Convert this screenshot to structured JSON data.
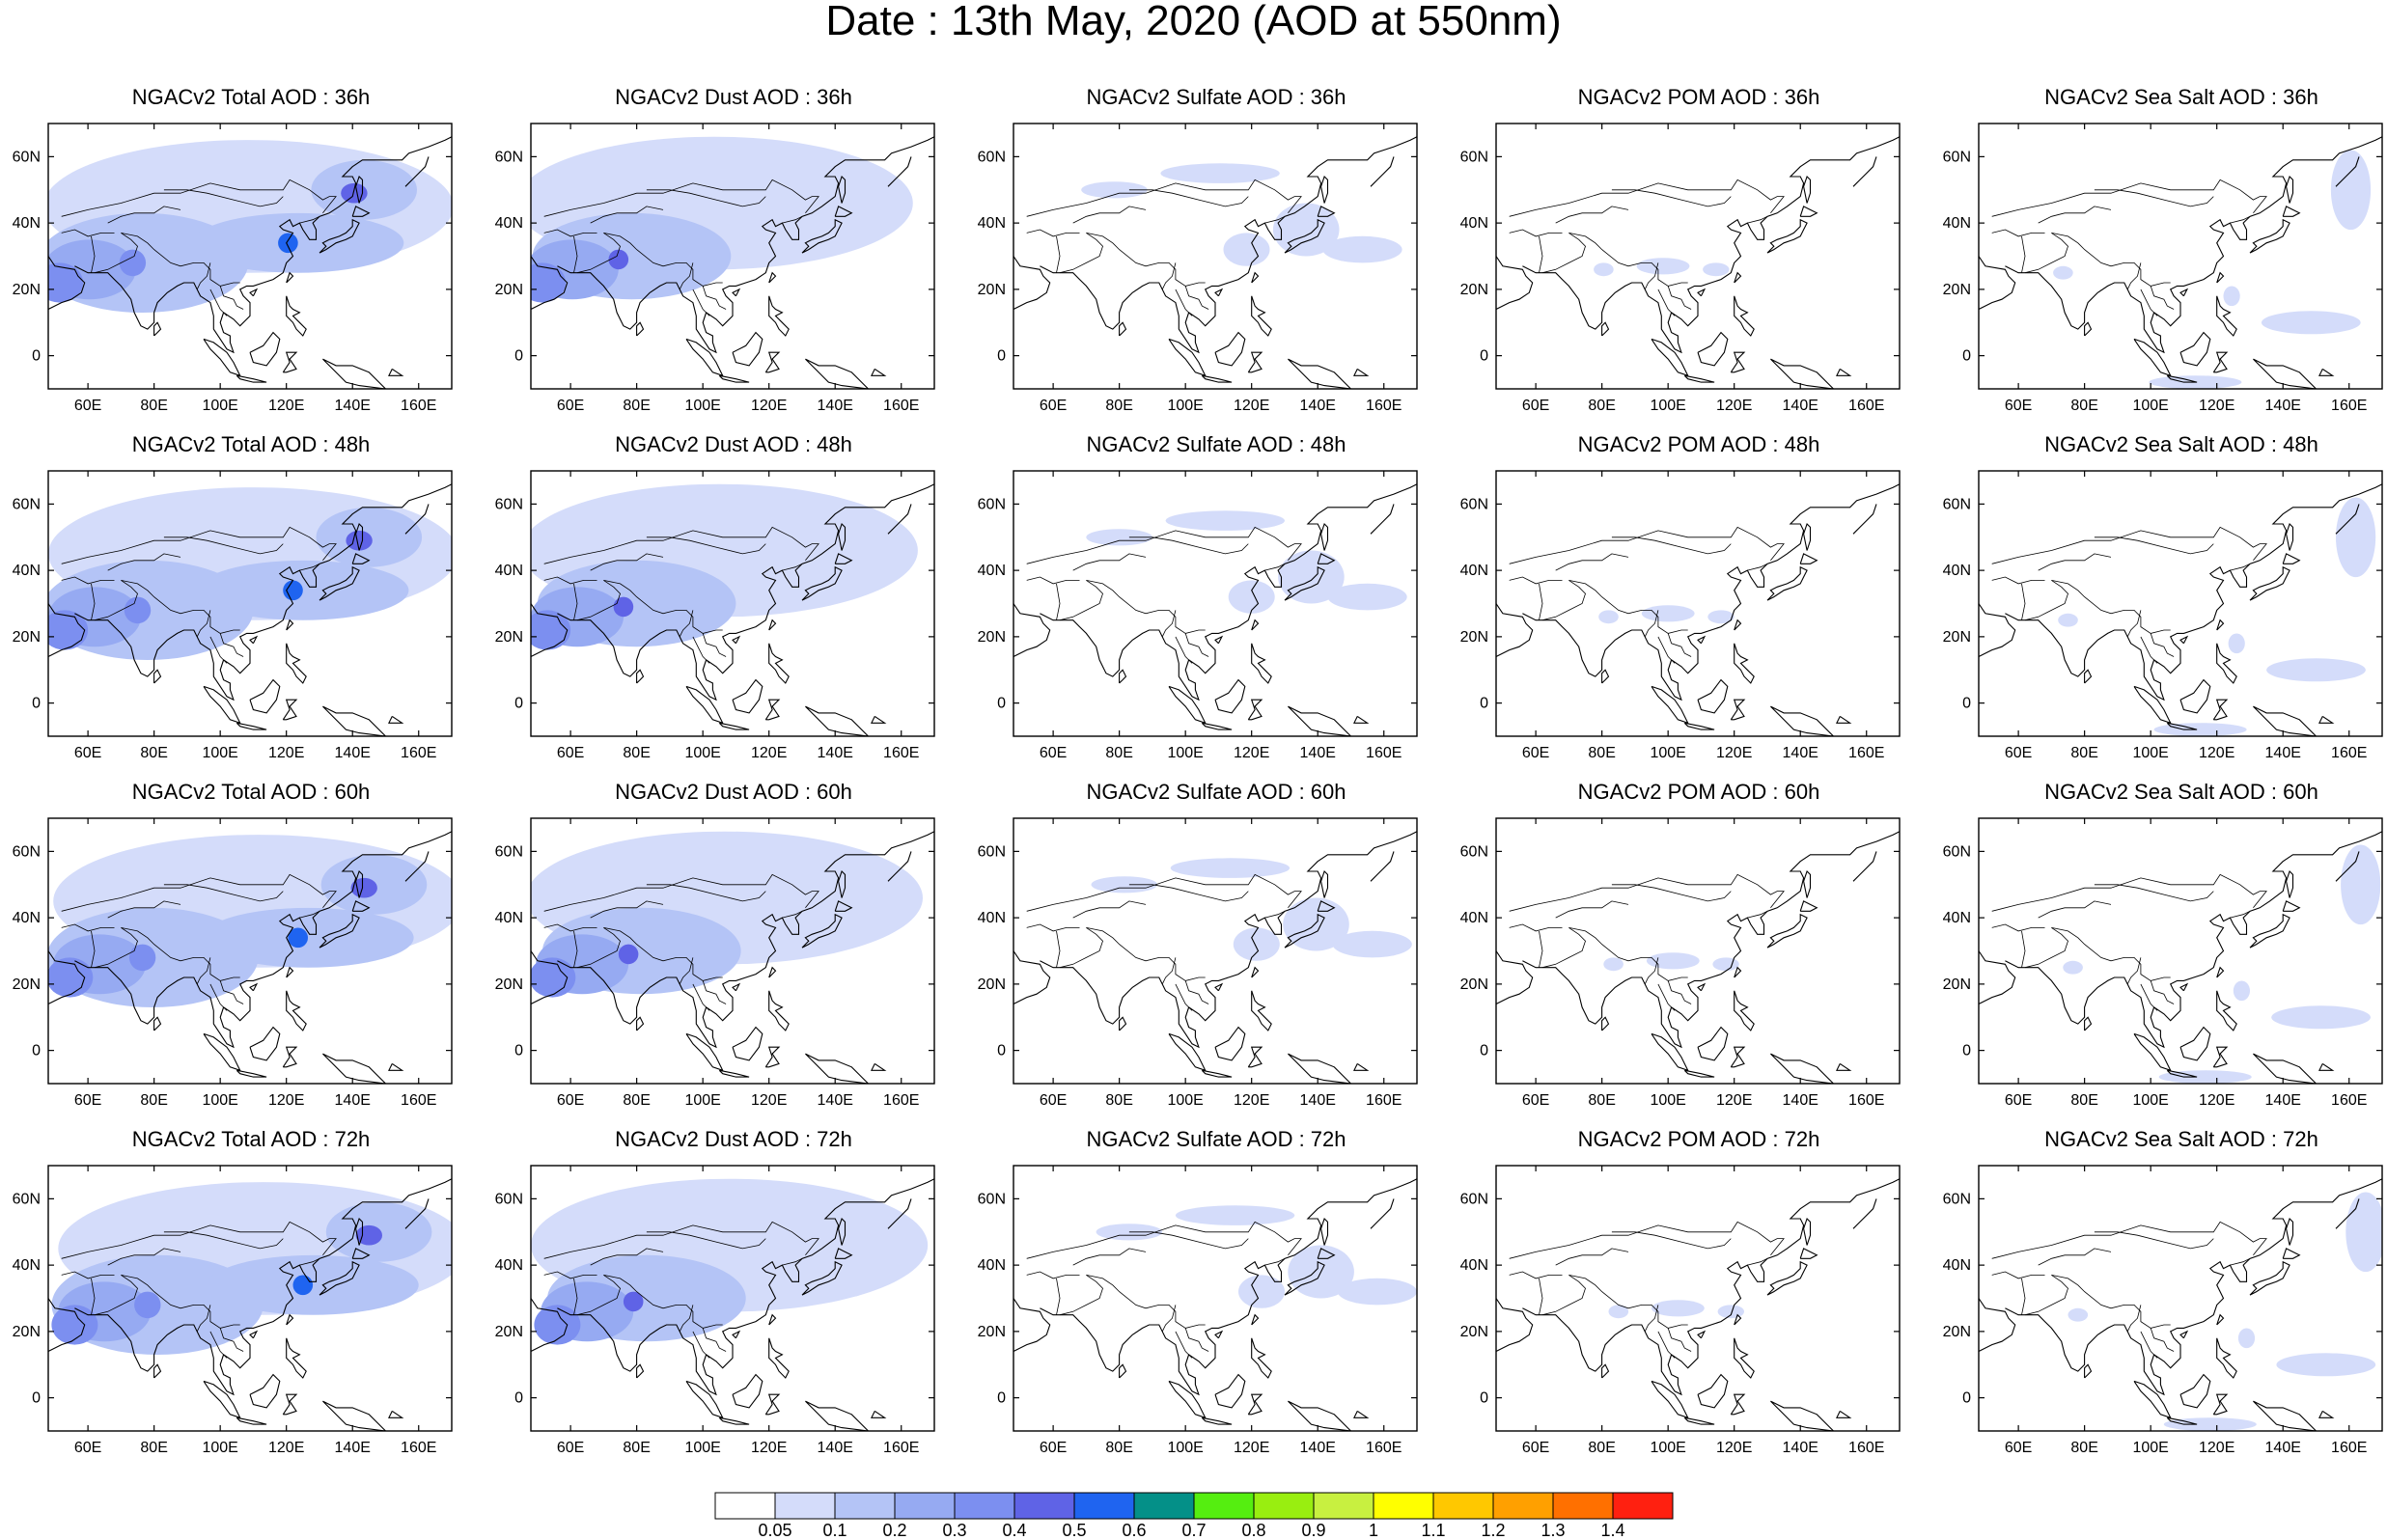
{
  "title": "Date : 13th May, 2020 (AOD at 550nm)",
  "lat_labels": [
    "60N",
    "40N",
    "20N",
    "0"
  ],
  "lon_labels": [
    "60E",
    "80E",
    "100E",
    "120E",
    "140E",
    "160E"
  ],
  "panel_titles": [
    [
      "NGACv2 Total AOD : 36h",
      "NGACv2 Dust AOD : 36h",
      "NGACv2 Sulfate AOD : 36h",
      "NGACv2 POM AOD : 36h",
      "NGACv2 Sea Salt AOD : 36h"
    ],
    [
      "NGACv2 Total AOD : 48h",
      "NGACv2 Dust AOD : 48h",
      "NGACv2 Sulfate AOD : 48h",
      "NGACv2 POM AOD : 48h",
      "NGACv2 Sea Salt AOD : 48h"
    ],
    [
      "NGACv2 Total AOD : 60h",
      "NGACv2 Dust AOD : 60h",
      "NGACv2 Sulfate AOD : 60h",
      "NGACv2 POM AOD : 60h",
      "NGACv2 Sea Salt AOD : 60h"
    ],
    [
      "NGACv2 Total AOD : 72h",
      "NGACv2 Dust AOD : 72h",
      "NGACv2 Sulfate AOD : 72h",
      "NGACv2 POM AOD : 72h",
      "NGACv2 Sea Salt  AOD : 72h"
    ]
  ],
  "colorbar": {
    "labels": [
      "0.05",
      "0.1",
      "0.2",
      "0.3",
      "0.4",
      "0.5",
      "0.6",
      "0.7",
      "0.8",
      "0.9",
      "1",
      "1.1",
      "1.2",
      "1.3",
      "1.4"
    ],
    "colors": [
      "#ffffff",
      "#d4dcfa",
      "#b4c4f6",
      "#96aaf2",
      "#7c8ff0",
      "#5f63e6",
      "#1f64f0",
      "#049088",
      "#55ee10",
      "#99ee10",
      "#c8f040",
      "#ffff00",
      "#ffc800",
      "#ffa000",
      "#ff7000",
      "#ff2010"
    ]
  },
  "map_extent": {
    "lon_range": [
      48,
      170
    ],
    "lat_range": [
      -10,
      70
    ]
  }
}
